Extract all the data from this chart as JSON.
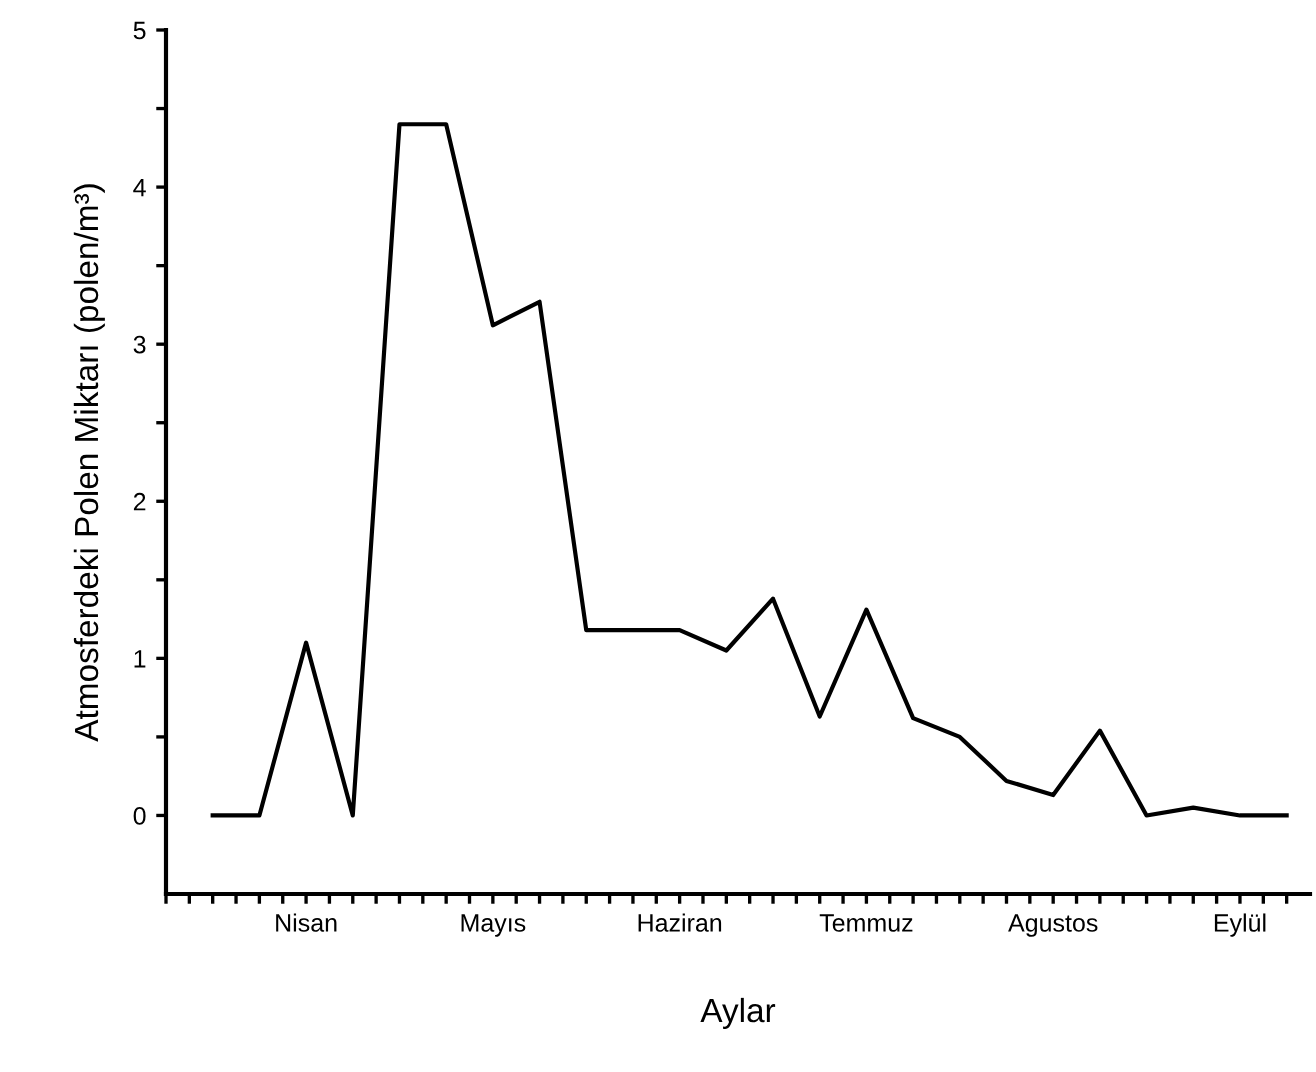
{
  "chart_data": {
    "type": "line",
    "xlabel": "Aylar",
    "ylabel": "Atmosferdeki Polen Miktarı (polen/m³)",
    "categories": [
      null,
      null,
      "Nisan",
      null,
      null,
      null,
      "Mayıs",
      null,
      null,
      null,
      "Haziran",
      null,
      null,
      null,
      "Temmuz",
      null,
      null,
      null,
      "Agustos",
      null,
      null,
      null,
      "Eylül",
      null
    ],
    "series": [
      {
        "color": "#000000",
        "values": [
          0,
          0,
          1.1,
          0,
          4.4,
          4.4,
          3.12,
          3.27,
          1.18,
          1.18,
          1.18,
          1.05,
          1.38,
          0.63,
          1.31,
          0.62,
          0.5,
          0.22,
          0.13,
          0.54,
          0,
          0.05,
          0,
          0
        ]
      }
    ],
    "ylim": [
      -0.5,
      5
    ],
    "yticks": [
      0,
      {
        "value": 0.5,
        "label": null
      },
      1,
      {
        "value": 1.5,
        "label": null
      },
      2,
      {
        "value": 2.5,
        "label": null
      },
      3,
      {
        "value": 3.5,
        "label": null
      },
      4,
      {
        "value": 4.5,
        "label": null
      },
      5
    ],
    "grid": false,
    "legend": false,
    "marker": "none",
    "line_style": "solid"
  }
}
